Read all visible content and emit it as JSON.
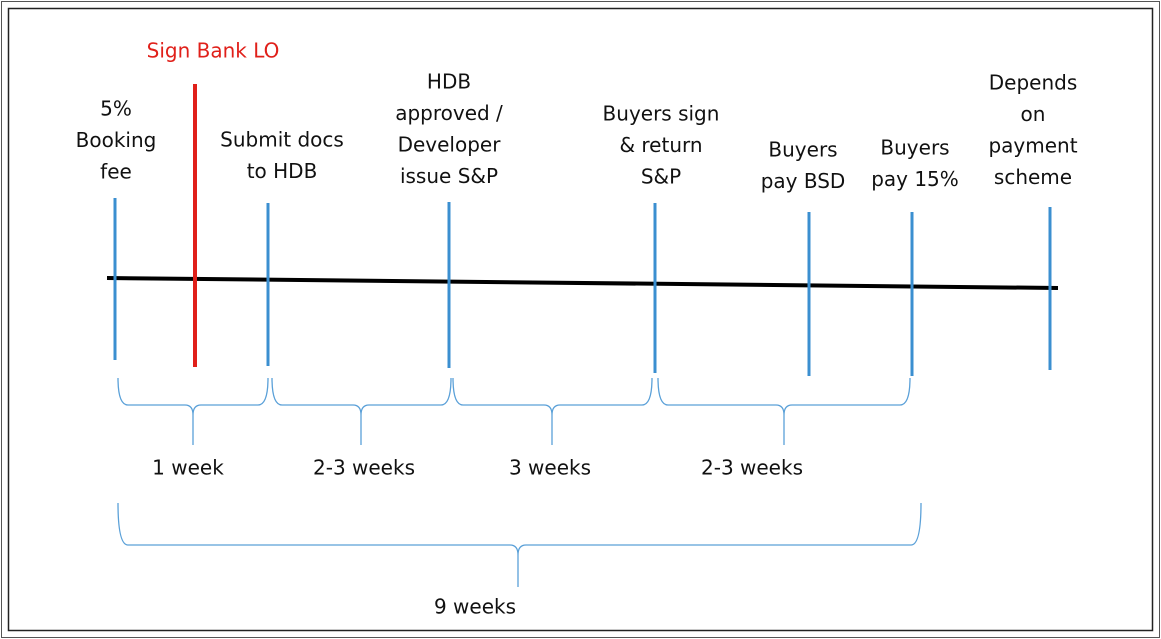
{
  "milestones": [
    {
      "lines": [
        "5%",
        "Booking",
        "fee"
      ]
    },
    {
      "lines": [
        "Submit docs",
        "to HDB"
      ]
    },
    {
      "lines": [
        "HDB",
        "approved /",
        "Developer",
        "issue S&P"
      ]
    },
    {
      "lines": [
        "Buyers sign",
        "& return",
        "S&P"
      ]
    },
    {
      "lines": [
        "Buyers",
        "pay BSD"
      ]
    },
    {
      "lines": [
        "Buyers",
        "pay 15%"
      ]
    },
    {
      "lines": [
        "Depends",
        "on",
        "payment",
        "scheme"
      ]
    }
  ],
  "sign_marker": {
    "label": "Sign Bank LO"
  },
  "periods": [
    "1 week",
    "2-3 weeks",
    "3 weeks",
    "2-3 weeks"
  ],
  "total": "9 weeks"
}
